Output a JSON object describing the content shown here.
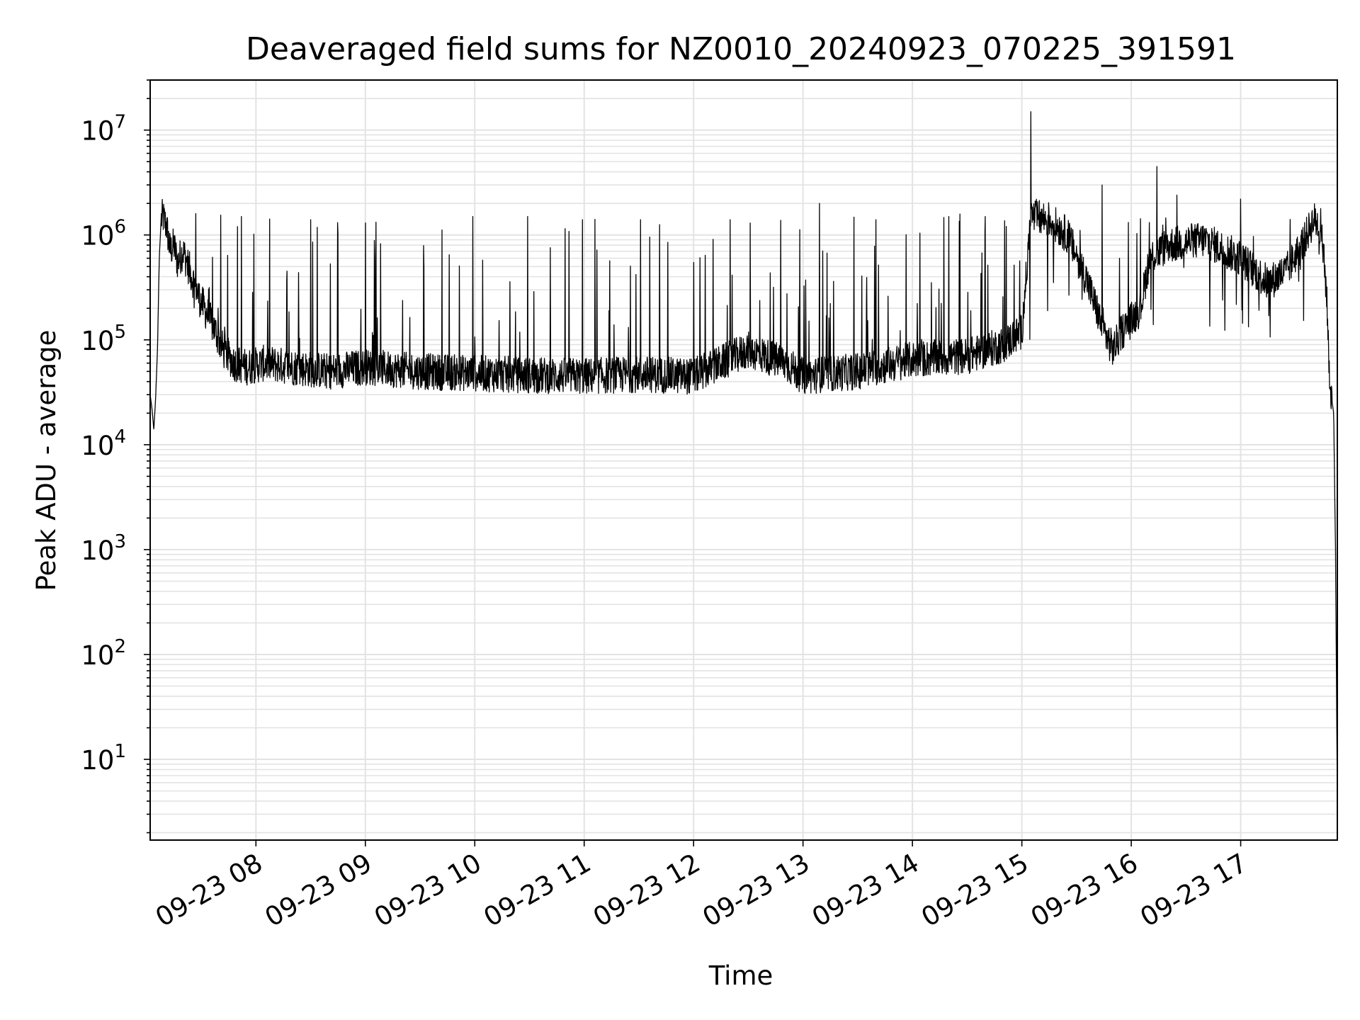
{
  "chart_data": {
    "type": "line",
    "title": "Deaveraged field sums for NZ0010_20240923_070225_391591",
    "xlabel": "Time",
    "ylabel": "Peak ADU - average",
    "xlim": [
      "2024-09-23 07:02",
      "2024-09-23 17:53"
    ],
    "y_scale": "log",
    "ylim": [
      1.7,
      30000000
    ],
    "grid": true,
    "line_color": "#000000",
    "x_ticks": [
      {
        "value": "2024-09-23 08:00",
        "label": "09-23 08"
      },
      {
        "value": "2024-09-23 09:00",
        "label": "09-23 09"
      },
      {
        "value": "2024-09-23 10:00",
        "label": "09-23 10"
      },
      {
        "value": "2024-09-23 11:00",
        "label": "09-23 11"
      },
      {
        "value": "2024-09-23 12:00",
        "label": "09-23 12"
      },
      {
        "value": "2024-09-23 13:00",
        "label": "09-23 13"
      },
      {
        "value": "2024-09-23 14:00",
        "label": "09-23 14"
      },
      {
        "value": "2024-09-23 15:00",
        "label": "09-23 15"
      },
      {
        "value": "2024-09-23 16:00",
        "label": "09-23 16"
      },
      {
        "value": "2024-09-23 17:00",
        "label": "09-23 17"
      }
    ],
    "y_ticks": [
      {
        "value": 10,
        "base": "10",
        "exp": "1"
      },
      {
        "value": 100,
        "base": "10",
        "exp": "2"
      },
      {
        "value": 1000,
        "base": "10",
        "exp": "3"
      },
      {
        "value": 10000,
        "base": "10",
        "exp": "4"
      },
      {
        "value": 100000,
        "base": "10",
        "exp": "5"
      },
      {
        "value": 1000000,
        "base": "10",
        "exp": "6"
      },
      {
        "value": 10000000,
        "base": "10",
        "exp": "7"
      }
    ],
    "series": [
      {
        "points": [
          [
            "2024-09-23 07:02",
            30000
          ],
          [
            "2024-09-23 07:03",
            22000
          ],
          [
            "2024-09-23 07:04",
            14000
          ],
          [
            "2024-09-23 07:05",
            28000
          ],
          [
            "2024-09-23 07:06",
            80000
          ],
          [
            "2024-09-23 07:07",
            600000
          ],
          [
            "2024-09-23 07:08",
            1400000
          ],
          [
            "2024-09-23 07:09",
            1500000
          ],
          [
            "2024-09-23 07:11",
            1200000
          ],
          [
            "2024-09-23 07:13",
            700000
          ],
          [
            "2024-09-23 07:15",
            800000
          ],
          [
            "2024-09-23 07:17",
            550000
          ],
          [
            "2024-09-23 07:20",
            700000
          ],
          [
            "2024-09-23 07:23",
            500000
          ],
          [
            "2024-09-23 07:26",
            350000
          ],
          [
            "2024-09-23 07:29",
            250000
          ],
          [
            "2024-09-23 07:33",
            180000
          ],
          [
            "2024-09-23 07:37",
            130000
          ],
          [
            "2024-09-23 07:42",
            80000
          ],
          [
            "2024-09-23 07:48",
            60000
          ],
          [
            "2024-09-23 07:55",
            55000
          ],
          [
            "2024-09-23 08:05",
            60000
          ],
          [
            "2024-09-23 08:20",
            55000
          ],
          [
            "2024-09-23 08:40",
            50000
          ],
          [
            "2024-09-23 09:00",
            55000
          ],
          [
            "2024-09-23 09:30",
            50000
          ],
          [
            "2024-09-23 10:00",
            48000
          ],
          [
            "2024-09-23 10:30",
            46000
          ],
          [
            "2024-09-23 11:00",
            45000
          ],
          [
            "2024-09-23 11:30",
            47000
          ],
          [
            "2024-09-23 12:00",
            45000
          ],
          [
            "2024-09-23 12:30",
            80000
          ],
          [
            "2024-09-23 12:50",
            60000
          ],
          [
            "2024-09-23 13:00",
            45000
          ],
          [
            "2024-09-23 13:30",
            50000
          ],
          [
            "2024-09-23 14:00",
            65000
          ],
          [
            "2024-09-23 14:30",
            70000
          ],
          [
            "2024-09-23 14:50",
            90000
          ],
          [
            "2024-09-23 15:00",
            120000
          ],
          [
            "2024-09-23 15:05",
            1500000
          ],
          [
            "2024-09-23 15:15",
            1400000
          ],
          [
            "2024-09-23 15:25",
            1000000
          ],
          [
            "2024-09-23 15:35",
            400000
          ],
          [
            "2024-09-23 15:45",
            120000
          ],
          [
            "2024-09-23 15:50",
            80000
          ],
          [
            "2024-09-23 15:55",
            120000
          ],
          [
            "2024-09-23 16:05",
            200000
          ],
          [
            "2024-09-23 16:10",
            600000
          ],
          [
            "2024-09-23 16:20",
            800000
          ],
          [
            "2024-09-23 16:40",
            900000
          ],
          [
            "2024-09-23 17:00",
            600000
          ],
          [
            "2024-09-23 17:15",
            350000
          ],
          [
            "2024-09-23 17:25",
            450000
          ],
          [
            "2024-09-23 17:35",
            900000
          ],
          [
            "2024-09-23 17:40",
            1400000
          ],
          [
            "2024-09-23 17:44",
            1200000
          ],
          [
            "2024-09-23 17:47",
            300000
          ],
          [
            "2024-09-23 17:49",
            35000
          ],
          [
            "2024-09-23 17:51",
            20000
          ],
          [
            "2024-09-23 17:52",
            1000
          ],
          [
            "2024-09-23 17:53",
            4
          ]
        ],
        "spikes": [
          [
            "2024-09-23 15:05",
            15000000
          ],
          [
            "2024-09-23 16:14",
            4500000
          ],
          [
            "2024-09-23 15:44",
            3000000
          ],
          [
            "2024-09-23 13:09",
            2000000
          ],
          [
            "2024-09-23 16:25",
            2400000
          ],
          [
            "2024-09-23 17:00",
            2200000
          ],
          [
            "2024-09-23 07:27",
            1600000
          ],
          [
            "2024-09-23 07:52",
            1500000
          ],
          [
            "2024-09-23 08:30",
            1400000
          ],
          [
            "2024-09-23 09:00",
            1300000
          ],
          [
            "2024-09-23 09:59",
            1500000
          ],
          [
            "2024-09-23 10:29",
            1500000
          ],
          [
            "2024-09-23 10:59",
            1400000
          ],
          [
            "2024-09-23 11:31",
            1400000
          ],
          [
            "2024-09-23 12:20",
            1400000
          ],
          [
            "2024-09-23 12:31",
            1300000
          ],
          [
            "2024-09-23 13:40",
            1400000
          ],
          [
            "2024-09-23 14:20",
            1500000
          ],
          [
            "2024-09-23 14:40",
            1500000
          ]
        ]
      }
    ]
  }
}
